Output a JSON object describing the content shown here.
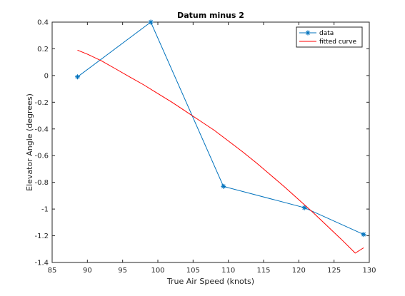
{
  "chart_data": {
    "type": "line",
    "title": "Datum minus 2",
    "xlabel": "True Air Speed (knots)",
    "ylabel": "Elevator Angle (degrees)",
    "xlim": [
      85,
      130
    ],
    "ylim": [
      -1.4,
      0.4
    ],
    "xticks": [
      "85",
      "90",
      "95",
      "100",
      "105",
      "110",
      "115",
      "120",
      "125",
      "130"
    ],
    "yticks": [
      "0.4",
      "0.2",
      "0",
      "-0.2",
      "-0.4",
      "-0.6",
      "-0.8",
      "-1",
      "-1.2",
      "-1.4"
    ],
    "grid": false,
    "legend_position": "top-right",
    "series": [
      {
        "name": "data",
        "color": "#0072bd",
        "marker": "asterisk",
        "x": [
          88.6,
          99.0,
          109.3,
          120.8,
          129.2
        ],
        "y": [
          -0.01,
          0.4,
          -0.83,
          -0.99,
          -1.19
        ]
      },
      {
        "name": "fitted curve",
        "color": "#ff0000",
        "marker": "none",
        "x": [
          88.6,
          90,
          92,
          94,
          96,
          98,
          100,
          102,
          104,
          106,
          108,
          110,
          112,
          114,
          116,
          118,
          120,
          122,
          124,
          126,
          128,
          129.2
        ],
        "y": [
          0.19,
          0.16,
          0.11,
          0.05,
          -0.01,
          -0.07,
          -0.135,
          -0.2,
          -0.27,
          -0.34,
          -0.41,
          -0.49,
          -0.57,
          -0.655,
          -0.745,
          -0.835,
          -0.93,
          -1.025,
          -1.125,
          -1.225,
          -1.33,
          -1.29
        ]
      }
    ]
  }
}
